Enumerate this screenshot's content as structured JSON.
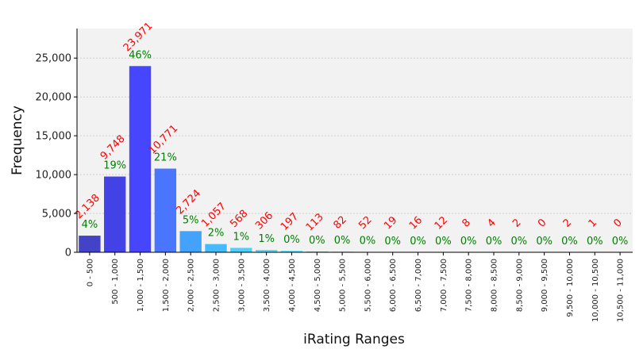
{
  "chart_data": {
    "type": "bar",
    "title": "",
    "xlabel": "iRating Ranges",
    "ylabel": "Frequency",
    "ylim": [
      0,
      28800
    ],
    "yticks": [
      0,
      5000,
      10000,
      15000,
      20000,
      25000
    ],
    "ytick_labels": [
      "0",
      "5,000",
      "10,000",
      "15,000",
      "20,000",
      "25,000"
    ],
    "grid": true,
    "categories": [
      "0 - 500",
      "500 - 1,000",
      "1,000 - 1,500",
      "1,500 - 2,000",
      "2,000 - 2,500",
      "2,500 - 3,000",
      "3,000 - 3,500",
      "3,500 - 4,000",
      "4,000 - 4,500",
      "4,500 - 5,000",
      "5,000 - 5,500",
      "5,500 - 6,000",
      "6,000 - 6,500",
      "6,500 - 7,000",
      "7,000 - 7,500",
      "7,500 - 8,000",
      "8,000 - 8,500",
      "8,500 - 9,000",
      "9,000 - 9,500",
      "9,500 - 10,000",
      "10,000 - 10,500",
      "10,500 - 11,000"
    ],
    "values": [
      2138,
      9748,
      23971,
      10771,
      2724,
      1057,
      568,
      306,
      197,
      113,
      82,
      52,
      19,
      16,
      12,
      8,
      4,
      2,
      0,
      2,
      1,
      0
    ],
    "count_labels": [
      "2,138",
      "9,748",
      "23,971",
      "10,771",
      "2,724",
      "1,057",
      "568",
      "306",
      "197",
      "113",
      "82",
      "52",
      "19",
      "16",
      "12",
      "8",
      "4",
      "2",
      "0",
      "2",
      "1",
      "0"
    ],
    "percent_labels": [
      "4%",
      "19%",
      "46%",
      "21%",
      "5%",
      "2%",
      "1%",
      "1%",
      "0%",
      "0%",
      "0%",
      "0%",
      "0%",
      "0%",
      "0%",
      "0%",
      "0%",
      "0%",
      "0%",
      "0%",
      "0%",
      "0%"
    ],
    "bar_colors": [
      "#4343c8",
      "#4242e6",
      "#4646ff",
      "#4a76ff",
      "#44a2ff",
      "#44baff",
      "#4dcfff",
      "#55dcff",
      "#5ae6ff",
      "#66eed8",
      "#80f2a0",
      "#aaf080",
      "#c8f070",
      "#d8f070",
      "#e4f070",
      "#ecf070",
      "#f0e870",
      "#f0d868",
      "#f0c860",
      "#f0b858",
      "#f0a850",
      "#f09848"
    ],
    "count_label_color": "#ff0000",
    "percent_label_color": "#008000",
    "plot_background": "#f2f2f2"
  }
}
